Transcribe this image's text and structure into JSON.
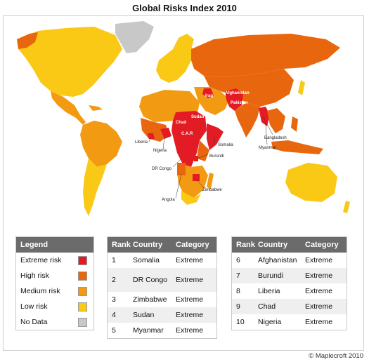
{
  "title": "Global Risks Index 2010",
  "colors": {
    "extreme": "#e21b24",
    "high": "#e8670e",
    "medium": "#f29a12",
    "low": "#f9c916",
    "nodata": "#c8c8c8",
    "header": "#6b6b6b"
  },
  "legend": {
    "title": "Legend",
    "items": [
      {
        "label": "Extreme risk",
        "color": "#e21b24"
      },
      {
        "label": "High risk",
        "color": "#e8670e"
      },
      {
        "label": "Medium risk",
        "color": "#f29a12"
      },
      {
        "label": "Low risk",
        "color": "#f9c916"
      },
      {
        "label": "No Data",
        "color": "#c8c8c8"
      }
    ]
  },
  "table_headers": {
    "rank": "Rank",
    "country": "Country",
    "category": "Category"
  },
  "rankings_1": [
    {
      "rank": "1",
      "country": "Somalia",
      "category": "Extreme"
    },
    {
      "rank": "2",
      "country": "DR Congo",
      "category": "Extreme"
    },
    {
      "rank": "3",
      "country": "Zimbabwe",
      "category": "Extreme"
    },
    {
      "rank": "4",
      "country": "Sudan",
      "category": "Extreme"
    },
    {
      "rank": "5",
      "country": "Myanmar",
      "category": "Extreme"
    }
  ],
  "rankings_2": [
    {
      "rank": "6",
      "country": "Afghanistan",
      "category": "Extreme"
    },
    {
      "rank": "7",
      "country": "Burundi",
      "category": "Extreme"
    },
    {
      "rank": "8",
      "country": "Liberia",
      "category": "Extreme"
    },
    {
      "rank": "9",
      "country": "Chad",
      "category": "Extreme"
    },
    {
      "rank": "10",
      "country": "Nigeria",
      "category": "Extreme"
    }
  ],
  "map_labels": {
    "iraq": "Iraq",
    "afghanistan": "Afghanistan",
    "pakistan": "Pakistan",
    "sudan": "Sudan",
    "chad": "Chad",
    "car": "C.A.R",
    "liberia": "Liberia",
    "nigeria": "Nigeria",
    "somalia": "Somalia",
    "burundi": "Burundi",
    "drcongo": "DR Congo",
    "angola": "Angola",
    "zimbabwe": "Zimbabwe",
    "bangladesh": "Bangladesh",
    "myanmar": "Myanmar"
  },
  "credit": "© Maplecroft 2010"
}
